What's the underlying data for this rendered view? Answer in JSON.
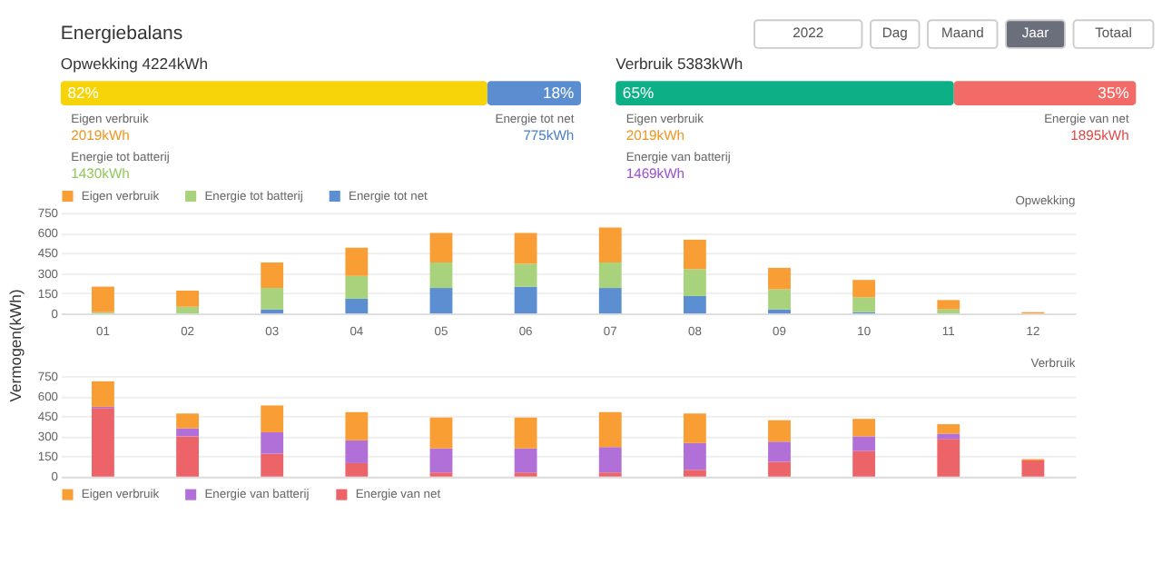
{
  "chart_data": [
    {
      "type": "other",
      "title": "Energiebalans",
      "annotations": [
        "2022",
        "Dag",
        "Maand",
        "Jaar",
        "Totaal"
      ]
    },
    {
      "type": "bar",
      "orientation": "horizontal",
      "stacked": true,
      "title": "Opwekking 4224kWh",
      "categories": [
        null
      ],
      "xlim": [
        0,
        100
      ],
      "tick_labels": false,
      "series": [
        {
          "color": "#f7d40a",
          "values": [
            82
          ],
          "value_labels": [
            "82%"
          ]
        },
        {
          "color": "#5b8ed0",
          "values": [
            18
          ],
          "value_labels": [
            "18%"
          ]
        }
      ],
      "annotations": [
        "Eigen verbruik",
        "2019kWh",
        "Energie tot batterij",
        "1430kWh",
        "Energie tot net",
        "775kWh"
      ]
    },
    {
      "type": "bar",
      "orientation": "horizontal",
      "stacked": true,
      "title": "Verbruik 5383kWh",
      "categories": [
        null
      ],
      "xlim": [
        0,
        100
      ],
      "tick_labels": false,
      "series": [
        {
          "color": "#0db086",
          "values": [
            65
          ],
          "value_labels": [
            "65%"
          ]
        },
        {
          "color": "#f26b66",
          "values": [
            35
          ],
          "value_labels": [
            "35%"
          ]
        }
      ],
      "annotations": [
        "Eigen verbruik",
        "2019kWh",
        "Energie van batterij",
        "1469kWh",
        "Energie van net",
        "1895kWh"
      ]
    },
    {
      "type": "bar",
      "stacked": true,
      "ylabel": "Vermogen(kWh)",
      "categories": [
        "01",
        "02",
        "03",
        "04",
        "05",
        "06",
        "07",
        "08",
        "09",
        "10",
        "11",
        "12"
      ],
      "ylim": [
        0,
        750
      ],
      "yticks": [
        0,
        150,
        300,
        450,
        600,
        750
      ],
      "grid": "y",
      "legend": "top left",
      "annotations": [
        "Opwekking"
      ],
      "series": [
        {
          "name": "Energie tot net",
          "color": "#5b8fd1",
          "values": [
            0,
            0,
            30,
            110,
            190,
            200,
            190,
            130,
            30,
            10,
            0,
            0
          ]
        },
        {
          "name": "Energie tot batterij",
          "color": "#a8d37c",
          "values": [
            10,
            50,
            160,
            170,
            190,
            170,
            190,
            200,
            150,
            110,
            30,
            0
          ]
        },
        {
          "name": "Eigen verbruik",
          "color": "#f99d35",
          "values": [
            190,
            120,
            190,
            210,
            220,
            230,
            260,
            220,
            160,
            130,
            70,
            10
          ]
        }
      ]
    },
    {
      "type": "bar",
      "stacked": true,
      "categories": [
        "01",
        "02",
        "03",
        "04",
        "05",
        "06",
        "07",
        "08",
        "09",
        "10",
        "11",
        "12"
      ],
      "ylim": [
        0,
        750
      ],
      "yticks": [
        0,
        150,
        300,
        450,
        600,
        750
      ],
      "grid": "y",
      "legend": "bottom left",
      "tick_labels": "y",
      "annotations": [
        "Verbruik"
      ],
      "series": [
        {
          "name": "Energie van net",
          "color": "#ec6468",
          "values": [
            510,
            300,
            170,
            100,
            30,
            30,
            30,
            50,
            110,
            190,
            280,
            120
          ]
        },
        {
          "name": "Energie van batterij",
          "color": "#b070d8",
          "values": [
            10,
            60,
            160,
            170,
            180,
            180,
            190,
            200,
            150,
            110,
            40,
            0
          ]
        },
        {
          "name": "Eigen verbruik",
          "color": "#f99d35",
          "values": [
            190,
            110,
            200,
            210,
            230,
            230,
            260,
            220,
            160,
            130,
            70,
            10
          ]
        }
      ]
    }
  ]
}
